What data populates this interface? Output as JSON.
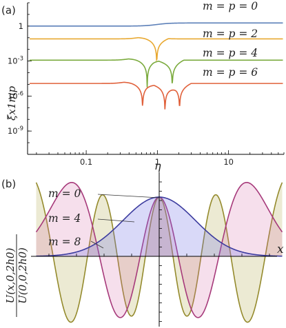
{
  "chart_data": [
    {
      "panel_label": "(a)",
      "type": "line",
      "xlabel": "η",
      "ylabel": "ξ̃x1mp",
      "x_scale": "log",
      "y_scale": "log",
      "xlim": [
        0.015,
        60
      ],
      "ylim": [
        1e-11,
        100
      ],
      "x_ticks": [
        {
          "value": 0.1,
          "label": "0.1"
        },
        {
          "value": 1,
          "label": "1"
        },
        {
          "value": 10,
          "label": "10"
        }
      ],
      "y_ticks": [
        {
          "value": 1,
          "label": "1"
        },
        {
          "value": 0.001,
          "label": "10-3"
        },
        {
          "value": 1e-06,
          "label": "10-6"
        },
        {
          "value": 1e-09,
          "label": "10-9"
        }
      ],
      "series": [
        {
          "name": "m = p = 0",
          "color": "#5b7fb8",
          "plateau": 1.0,
          "dips": []
        },
        {
          "name": "m = p = 2",
          "color": "#e8a830",
          "plateau": 0.08,
          "dips": [
            0.98
          ]
        },
        {
          "name": "m = p = 4",
          "color": "#7aaa3c",
          "plateau": 0.0012,
          "dips": [
            0.72,
            1.62
          ]
        },
        {
          "name": "m = p = 6",
          "color": "#e0603a",
          "plateau": 1.2e-05,
          "dips": [
            0.62,
            1.28,
            2.05
          ]
        }
      ]
    },
    {
      "panel_label": "(b)",
      "type": "area",
      "xlabel": "x",
      "ylabel": "U(x,0,2h0) / U(0,0,2h0)",
      "xlim": [
        -1,
        1
      ],
      "ylim": [
        -1.45,
        1.45
      ],
      "series": [
        {
          "name": "m = 0",
          "m": 0,
          "color": "#3b3b9e",
          "fill": "rgba(120,120,230,0.28)"
        },
        {
          "name": "m = 4",
          "m": 4,
          "color": "#a6397a",
          "fill": "rgba(215,110,170,0.22)"
        },
        {
          "name": "m = 8",
          "m": 8,
          "color": "#948a2c",
          "fill": "rgba(180,170,80,0.25)"
        }
      ]
    }
  ]
}
